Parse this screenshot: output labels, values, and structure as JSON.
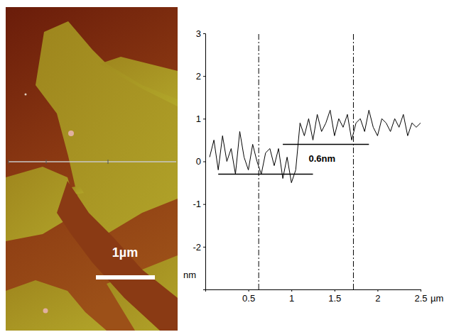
{
  "image": {
    "scale_bar_label": "1µm"
  },
  "chart_data": {
    "type": "line",
    "x_label": "µm",
    "y_label": "nm",
    "x": [
      0.05,
      0.1,
      0.15,
      0.2,
      0.25,
      0.3,
      0.35,
      0.4,
      0.45,
      0.5,
      0.55,
      0.6,
      0.65,
      0.7,
      0.75,
      0.8,
      0.85,
      0.9,
      0.95,
      1.0,
      1.05,
      1.1,
      1.15,
      1.2,
      1.25,
      1.3,
      1.35,
      1.4,
      1.45,
      1.5,
      1.55,
      1.6,
      1.65,
      1.7,
      1.75,
      1.8,
      1.85,
      1.9,
      1.95,
      2.0,
      2.05,
      2.1,
      2.15,
      2.2,
      2.25,
      2.3,
      2.35,
      2.4,
      2.45,
      2.5
    ],
    "series": [
      {
        "name": null,
        "color": "#000000",
        "values": [
          0.1,
          0.5,
          -0.2,
          0.6,
          0.0,
          0.3,
          -0.3,
          0.7,
          0.1,
          -0.2,
          0.4,
          0.0,
          -0.3,
          0.2,
          0.3,
          -0.1,
          0.3,
          -0.4,
          0.1,
          -0.5,
          -0.2,
          0.9,
          0.6,
          1.0,
          0.5,
          1.1,
          0.7,
          0.9,
          1.2,
          0.6,
          1.0,
          0.8,
          1.1,
          0.5,
          0.9,
          1.0,
          0.7,
          1.2,
          0.8,
          0.6,
          1.0,
          0.9,
          0.7,
          1.0,
          0.8,
          1.1,
          0.6,
          0.9,
          0.8,
          0.9
        ]
      }
    ],
    "xlim": [
      0,
      2.5
    ],
    "xticks": [
      0.5,
      1,
      1.5,
      2,
      2.5
    ],
    "ylim": [
      -3,
      3
    ],
    "yticks": [
      -2,
      -1,
      0,
      1,
      2,
      3
    ],
    "grid": false,
    "cursors": [
      0.62,
      1.72
    ],
    "levels": [
      {
        "y": -0.3,
        "x": [
          0.15,
          1.25
        ]
      },
      {
        "y": 0.4,
        "x": [
          0.9,
          1.9
        ]
      }
    ],
    "annotations": [
      {
        "text": "0.6nm",
        "x": 1.2,
        "y": 0.0
      }
    ]
  }
}
